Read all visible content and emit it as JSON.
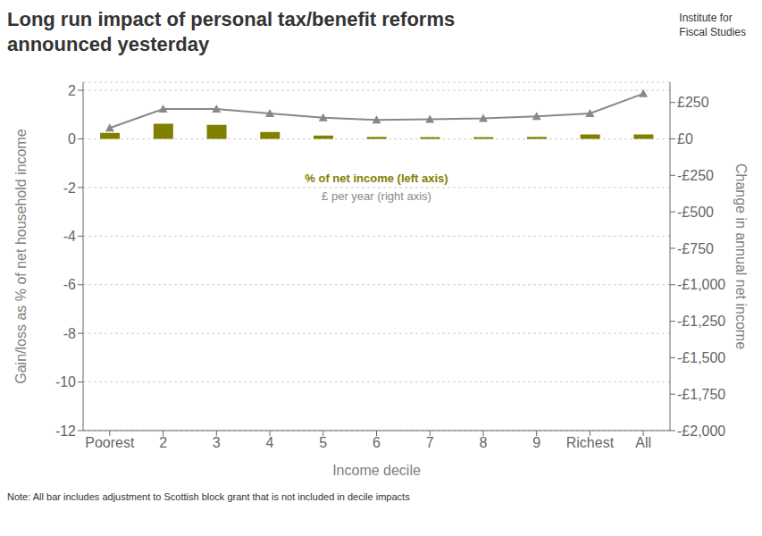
{
  "chart_data": {
    "type": "bar",
    "title": "Long run impact of personal tax/benefit reforms\nannounced yesterday",
    "categories": [
      "Poorest",
      "2",
      "3",
      "4",
      "5",
      "6",
      "7",
      "8",
      "9",
      "Richest",
      "All"
    ],
    "series": [
      {
        "name": "% of net income (left axis)",
        "type": "bar",
        "color": "#808000",
        "values": [
          0.25,
          0.62,
          0.58,
          0.28,
          0.14,
          0.08,
          0.07,
          0.07,
          0.08,
          0.18,
          0.18
        ]
      },
      {
        "name": "£ per year (right axis)",
        "type": "line",
        "axis": "y2",
        "color": "#888888",
        "marker": "triangle",
        "values": [
          75,
          205,
          205,
          175,
          145,
          130,
          135,
          140,
          155,
          175,
          310
        ]
      }
    ],
    "xlabel": "Income decile",
    "ylabel": "Gain/loss as % of net household income",
    "y2label": "Change in annual net income",
    "ylim": [
      -12,
      2.333
    ],
    "yticks": [
      -12,
      -10,
      -8,
      -6,
      -4,
      -2,
      0,
      2
    ],
    "y2lim": [
      -2000,
      388.8
    ],
    "y2ticks": [
      {
        "value": -2000,
        "label": "-£2,000"
      },
      {
        "value": -1750,
        "label": "-£1,750"
      },
      {
        "value": -1500,
        "label": "-£1,500"
      },
      {
        "value": -1250,
        "label": "-£1,250"
      },
      {
        "value": -1000,
        "label": "-£1,000"
      },
      {
        "value": -750,
        "label": "-£750"
      },
      {
        "value": -500,
        "label": "-£500"
      },
      {
        "value": -250,
        "label": "-£250"
      },
      {
        "value": 0,
        "label": "£0"
      },
      {
        "value": 250,
        "label": "£250"
      }
    ],
    "grid": true,
    "annotations": [
      "Institute for",
      "Fiscal Studies",
      "Note: All bar includes adjustment to Scottish block grant that is not included in decile impacts"
    ]
  }
}
